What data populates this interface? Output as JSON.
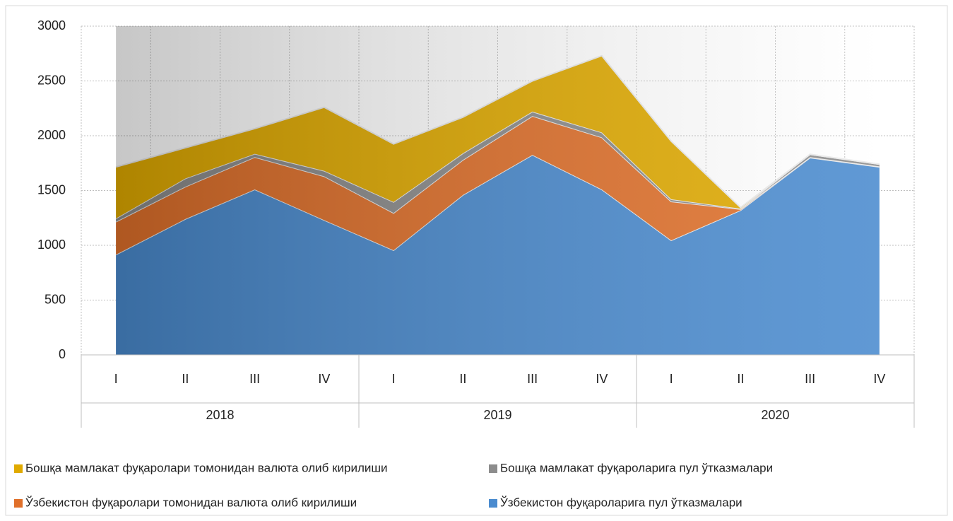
{
  "chart_data": {
    "type": "stacked-area",
    "categories": [
      "I",
      "II",
      "III",
      "IV",
      "I",
      "II",
      "III",
      "IV",
      "I",
      "II",
      "III",
      "IV"
    ],
    "x_groups": [
      "2018",
      "2019",
      "2020"
    ],
    "series": [
      {
        "name": "Ўзбекистон фуқароларига пул ўтказмалари",
        "color": "#4a8bcf",
        "values": [
          915,
          1240,
          1510,
          1230,
          955,
          1460,
          1825,
          1510,
          1045,
          1320,
          1800,
          1715
        ]
      },
      {
        "name": "Ўзбекистон фуқаролари томонидан валюта олиб кирилиши",
        "color": "#e0702a",
        "values": [
          300,
          295,
          295,
          400,
          340,
          320,
          355,
          475,
          355,
          10,
          5,
          5
        ]
      },
      {
        "name": "Бошқа мамлакат фуқароларига пул ўтказмалари",
        "color": "#8c8c8c",
        "values": [
          30,
          75,
          30,
          50,
          100,
          60,
          40,
          45,
          20,
          5,
          25,
          20
        ]
      },
      {
        "name": "Бошқа мамлакат фуқаролари томонидан валюта олиб кирилиши",
        "color": "#e0aa00",
        "values": [
          470,
          280,
          230,
          580,
          530,
          330,
          280,
          700,
          530,
          10,
          0,
          0
        ]
      }
    ],
    "ylim": [
      0,
      3000
    ],
    "yticks": [
      0,
      500,
      1000,
      1500,
      2000,
      2500,
      3000
    ],
    "grid": true
  }
}
